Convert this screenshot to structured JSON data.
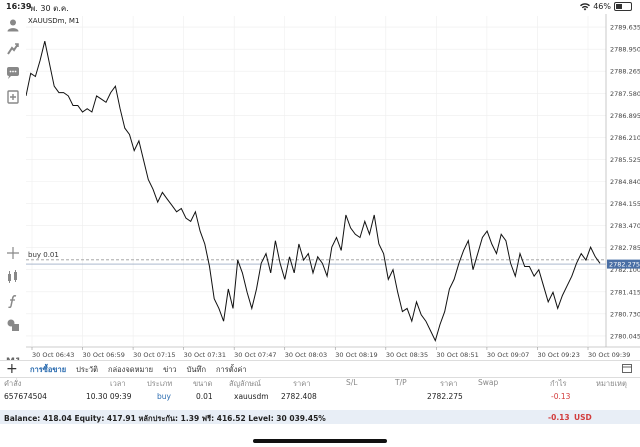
{
  "status_bar": {
    "time": "16:39",
    "date": "พ. 30 ต.ค.",
    "battery": "46%",
    "battery_level": 0.46
  },
  "chart": {
    "symbol_label": "XAUUSDm, M1",
    "order_line_label": "buy 0.01",
    "current_price_label": "2782.275",
    "timeframe": "M1"
  },
  "chart_data": {
    "type": "line",
    "title": "XAUUSDm, M1",
    "ylim": [
      2779.7,
      2789.98
    ],
    "x_ticks": [
      "30 Oct 06:43",
      "30 Oct 06:59",
      "30 Oct 07:15",
      "30 Oct 07:31",
      "30 Oct 07:47",
      "30 Oct 08:03",
      "30 Oct 08:19",
      "30 Oct 08:35",
      "30 Oct 08:51",
      "30 Oct 09:07",
      "30 Oct 09:23",
      "30 Oct 09:39"
    ],
    "y_ticks": [
      "2789.635",
      "2788.950",
      "2788.265",
      "2787.580",
      "2786.895",
      "2786.210",
      "2785.525",
      "2784.840",
      "2784.155",
      "2783.470",
      "2782.785",
      "2782.100",
      "2781.415",
      "2780.730",
      "2780.045"
    ],
    "y_tick_values": [
      2789.635,
      2788.95,
      2788.265,
      2787.58,
      2786.895,
      2786.21,
      2785.525,
      2784.84,
      2784.155,
      2783.47,
      2782.785,
      2782.1,
      2781.415,
      2780.73,
      2780.045
    ],
    "series": [
      {
        "name": "",
        "values": [
          2787.5,
          2788.2,
          2788.1,
          2788.6,
          2789.2,
          2788.5,
          2787.8,
          2787.6,
          2787.6,
          2787.5,
          2787.2,
          2787.2,
          2787.0,
          2787.1,
          2787.0,
          2787.5,
          2787.4,
          2787.3,
          2787.6,
          2787.8,
          2787.1,
          2786.5,
          2786.3,
          2785.8,
          2786.1,
          2785.5,
          2784.9,
          2784.6,
          2784.2,
          2784.5,
          2784.3,
          2784.1,
          2783.9,
          2784.0,
          2783.7,
          2783.6,
          2783.9,
          2783.3,
          2782.9,
          2782.2,
          2781.2,
          2780.9,
          2780.5,
          2781.5,
          2780.9,
          2782.4,
          2782.0,
          2781.4,
          2780.9,
          2781.5,
          2782.3,
          2782.6,
          2782.0,
          2783.0,
          2782.3,
          2781.8,
          2782.5,
          2782.0,
          2782.9,
          2782.4,
          2782.6,
          2782.0,
          2782.5,
          2782.3,
          2781.9,
          2782.8,
          2783.1,
          2782.7,
          2783.8,
          2783.4,
          2783.2,
          2783.1,
          2783.6,
          2783.2,
          2783.8,
          2782.9,
          2782.6,
          2781.8,
          2782.1,
          2781.4,
          2780.8,
          2780.9,
          2780.5,
          2781.1,
          2780.7,
          2780.5,
          2780.2,
          2779.9,
          2780.4,
          2780.8,
          2781.5,
          2781.8,
          2782.3,
          2782.7,
          2783.0,
          2782.1,
          2782.6,
          2783.1,
          2783.3,
          2782.9,
          2782.6,
          2783.2,
          2783.0,
          2782.3,
          2781.9,
          2782.6,
          2782.2,
          2782.2,
          2781.9,
          2782.1,
          2781.6,
          2781.1,
          2781.4,
          2780.9,
          2781.3,
          2781.6,
          2781.9,
          2782.3,
          2782.6,
          2782.4,
          2782.8,
          2782.5,
          2782.3
        ]
      }
    ],
    "buy_level": 2782.408,
    "current_price": 2782.275
  },
  "tabs": [
    "การซื้อขาย",
    "ประวัติ",
    "กล่องจดหมาย",
    "ข่าว",
    "บันทึก",
    "การตั้งค่า"
  ],
  "active_tab": 0,
  "table": {
    "headers": [
      "คำสั่ง",
      "เวลา",
      "ประเภท",
      "ขนาด",
      "สัญลักษณ์",
      "ราคา",
      "S/L",
      "T/P",
      "ราคา",
      "Swap",
      "กำไร",
      "หมายเหตุ"
    ],
    "rows": [
      {
        "order": "657674504",
        "time": "10.30 09:39",
        "type": "buy",
        "size": "0.01",
        "symbol": "xauusdm",
        "open_price": "2782.408",
        "sl": "",
        "tp": "",
        "price": "2782.275",
        "swap": "",
        "profit": "-0.13",
        "comment": ""
      }
    ]
  },
  "balance": {
    "text": "Balance: 418.04 Equity: 417.91 หลักประกัน: 1.39 ฟรี: 416.52 Level: 30 039.45%",
    "profit": "-0.13",
    "currency": "USD"
  },
  "colors": {
    "accent": "#2b6cb0",
    "loss": "#d23c3c",
    "price_tag": "#4a6fa5",
    "line": "#111111",
    "grid": "#eeeeee"
  },
  "toolbar_icons": [
    "person-icon",
    "signal-icon",
    "chat-icon",
    "add-chart-icon",
    "crosshair-icon",
    "indicators-icon",
    "function-icon",
    "objects-icon"
  ]
}
